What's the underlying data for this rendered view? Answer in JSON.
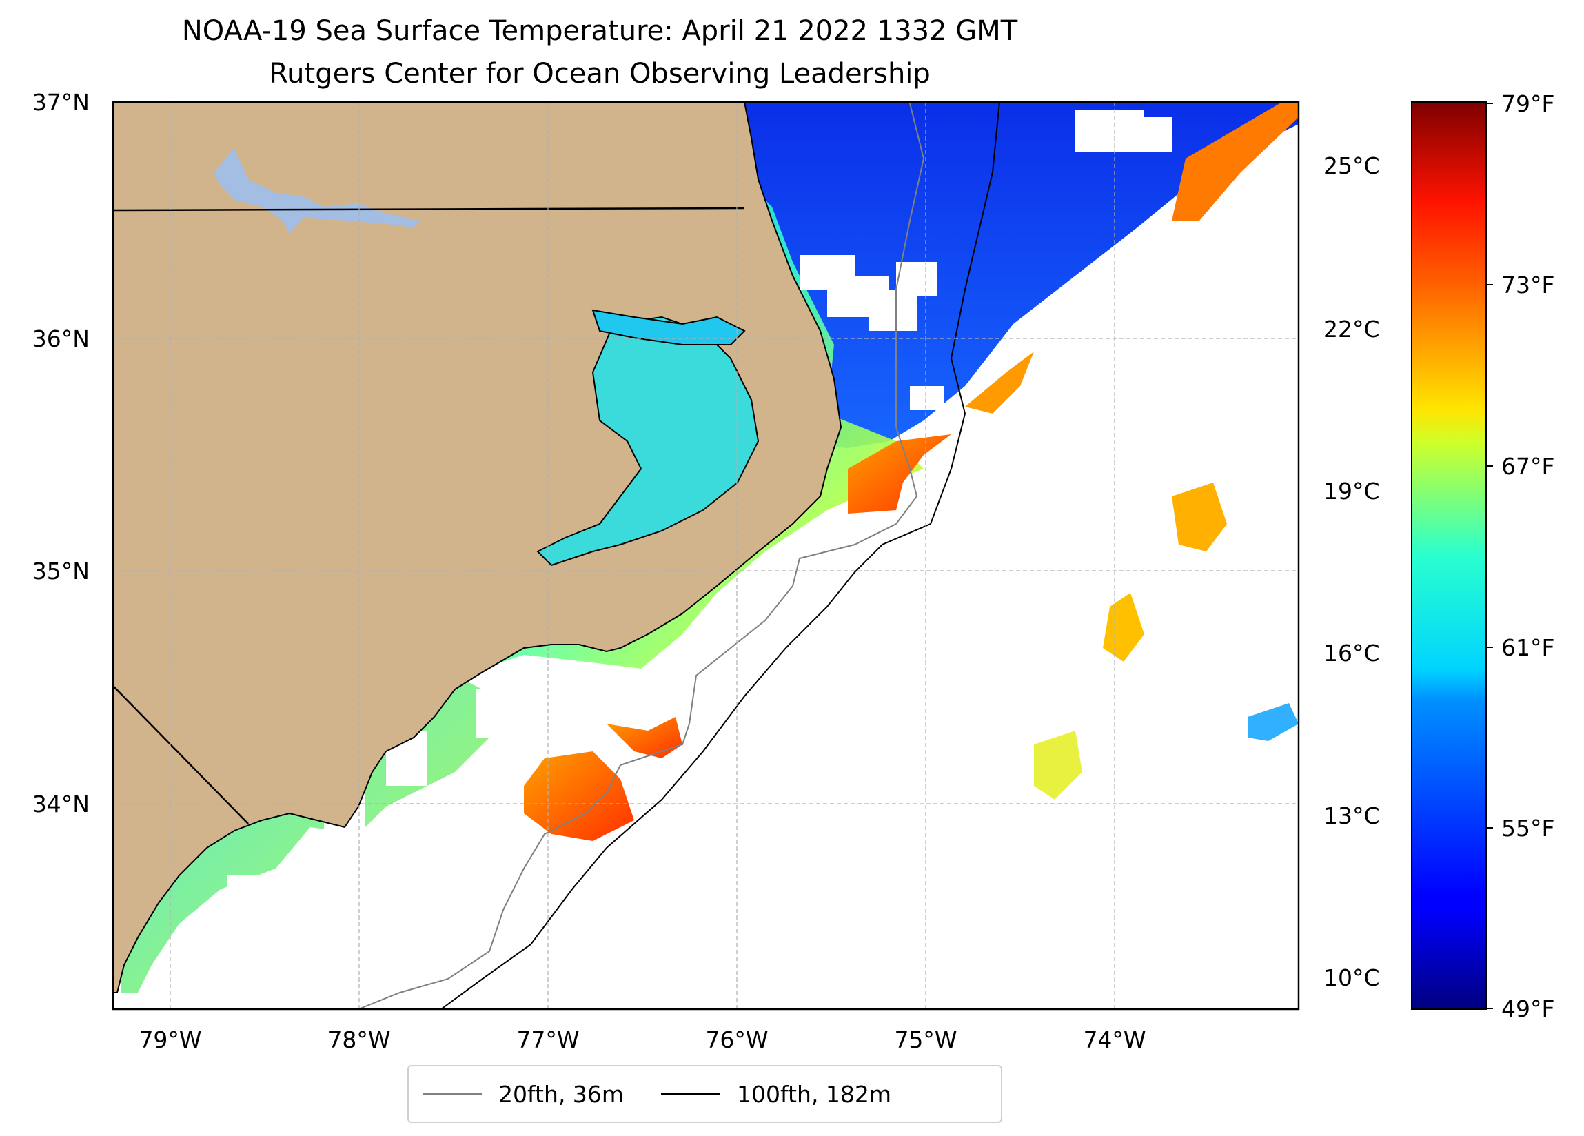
{
  "title": {
    "line1": "NOAA-19 Sea Surface Temperature: April 21 2022 1332 GMT",
    "line2": "Rutgers Center for Ocean Observing Leadership"
  },
  "map": {
    "lat_range": [
      33.1,
      37.0
    ],
    "lon_range": [
      -79.3,
      -73.05
    ],
    "lat_ticks": [
      "37°N",
      "36°N",
      "35°N",
      "34°N"
    ],
    "lon_ticks": [
      "79°W",
      "78°W",
      "77°W",
      "76°W",
      "75°W",
      "74°W"
    ],
    "colors": {
      "land": "#d2b48c",
      "lakes": "#a3bde3",
      "grid": "#b0b0b0"
    }
  },
  "colorbar": {
    "colormap": "jet",
    "celsius_ticks": [
      "25°C",
      "22°C",
      "19°C",
      "16°C",
      "13°C",
      "10°C"
    ],
    "fahrenheit_ticks": [
      "79°F",
      "73°F",
      "67°F",
      "61°F",
      "55°F",
      "49°F"
    ],
    "range_f": [
      49,
      79
    ]
  },
  "legend": {
    "items": [
      {
        "label": "20fth, 36m",
        "color": "#808080"
      },
      {
        "label": "100fth, 182m",
        "color": "#000000"
      }
    ]
  }
}
